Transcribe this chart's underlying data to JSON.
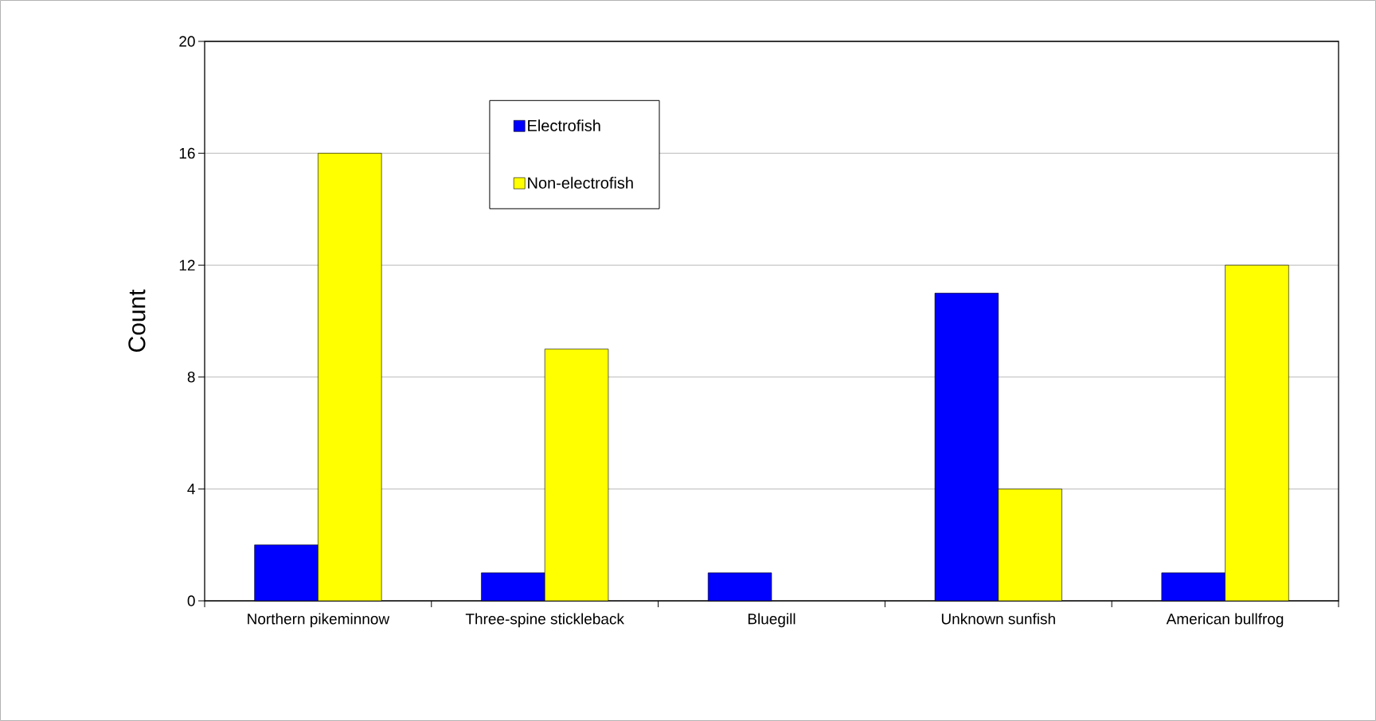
{
  "chart_data": {
    "type": "bar",
    "ylabel": "Count",
    "categories": [
      "Northern pikeminnow",
      "Three-spine stickleback",
      "Bluegill",
      "Unknown sunfish",
      "American bullfrog"
    ],
    "series": [
      {
        "name": "Electrofish",
        "color": "#0000ff",
        "values": [
          2,
          1,
          1,
          11,
          1
        ]
      },
      {
        "name": "Non-electrofish",
        "color": "#ffff00",
        "values": [
          16,
          9,
          0,
          4,
          12
        ]
      }
    ],
    "ylim": [
      0,
      20
    ],
    "yticks": [
      0,
      4,
      8,
      12,
      16,
      20
    ],
    "grid": "y",
    "legend": "top"
  }
}
